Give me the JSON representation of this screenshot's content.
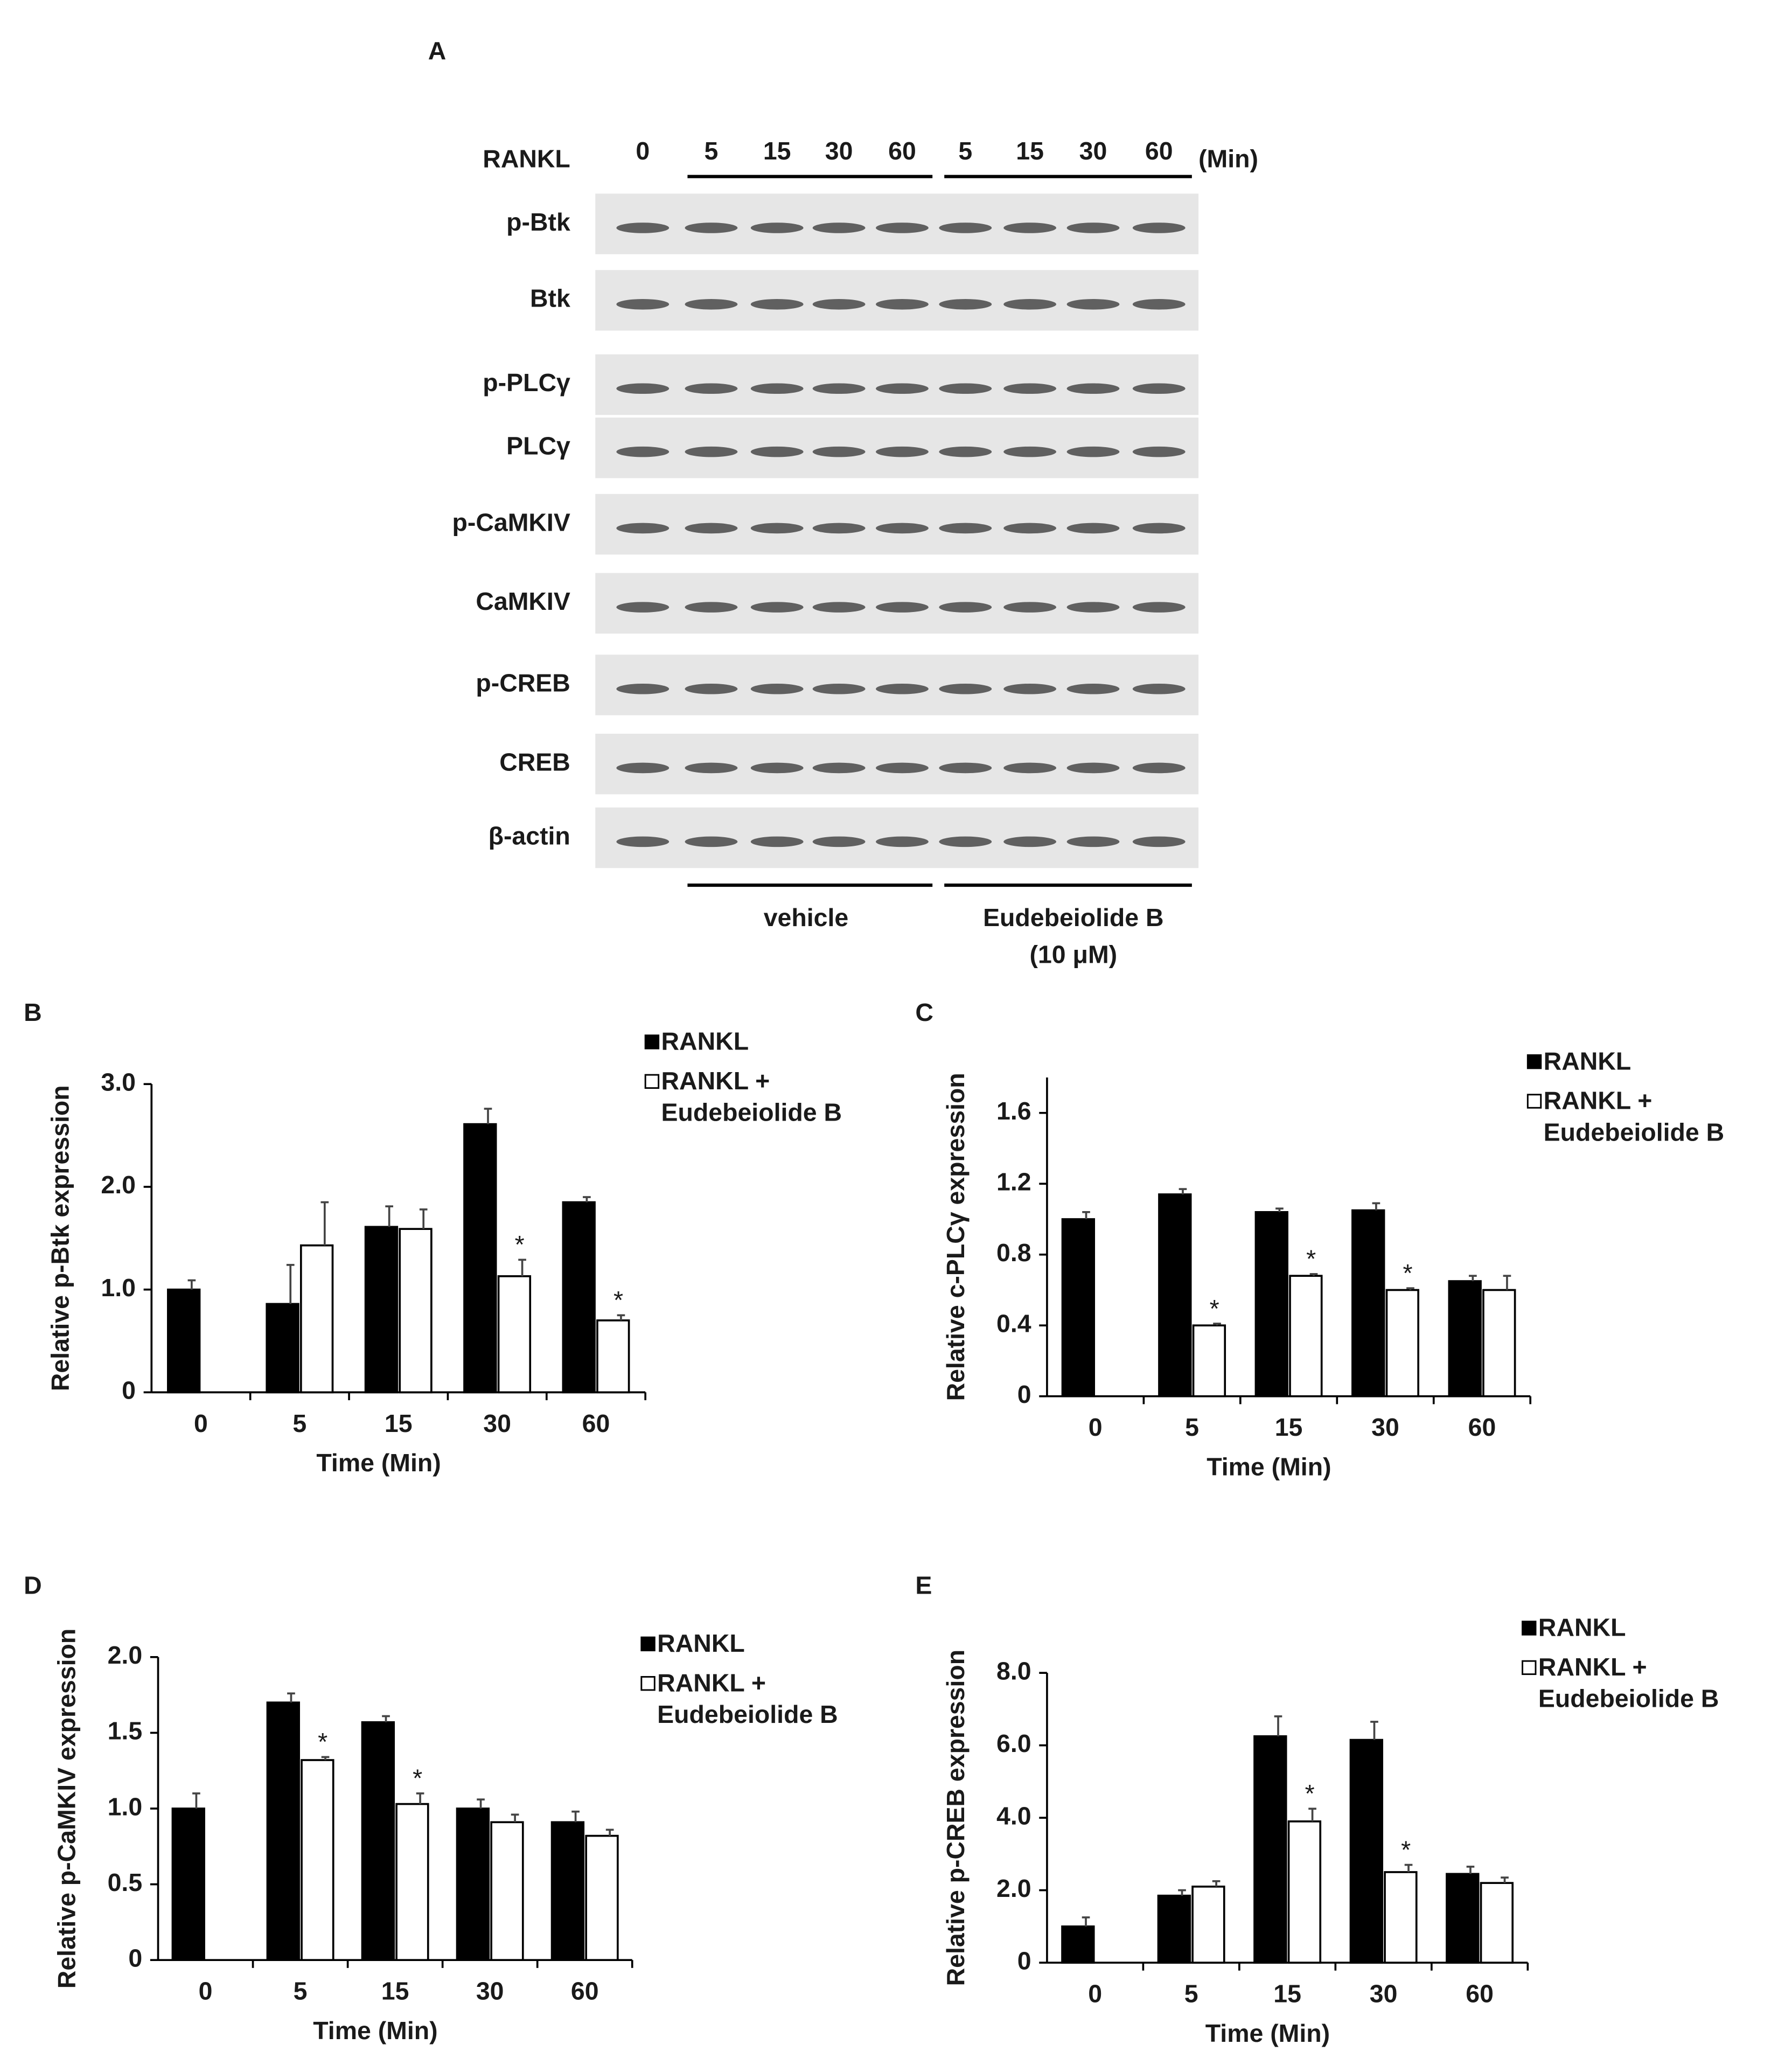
{
  "blot": {
    "panel_label": "A",
    "row_header": "RANKL",
    "lanes": [
      "0",
      "5",
      "15",
      "30",
      "60",
      "5",
      "15",
      "30",
      "60"
    ],
    "unit": "(Min)",
    "rows": [
      "p-Btk",
      "Btk",
      "p-PLCγ",
      "PLCγ",
      "p-CaMKIV",
      "CaMKIV",
      "p-CREB",
      "CREB",
      "β-actin"
    ],
    "groups": [
      [
        "vehicle"
      ],
      [
        "Eudebeiolide B",
        "(10 μM)"
      ]
    ]
  },
  "chart_data": [
    {
      "type": "bar",
      "panel_label": "B",
      "ylabel": "Relative p-Btk expression",
      "xlabel": "Time (Min)",
      "categories": [
        "0",
        "5",
        "15",
        "30",
        "60"
      ],
      "ylim": [
        0,
        3
      ],
      "yticks": [
        0,
        {
          "value": 1,
          "label": "1.0"
        },
        {
          "value": 2,
          "label": "2.0"
        },
        {
          "value": 3,
          "label": "3.0"
        }
      ],
      "series": [
        {
          "name": "RANKL",
          "color": "#000000",
          "values": [
            1.0,
            0.86,
            1.61,
            2.61,
            1.85
          ],
          "errors": [
            0.09,
            0.38,
            0.2,
            0.15,
            0.05
          ]
        },
        {
          "name": "RANKL + Eudebeiolide B",
          "color": "#ffffff",
          "values": [
            null,
            1.43,
            1.59,
            1.13,
            0.7
          ],
          "errors": [
            null,
            0.42,
            0.19,
            0.16,
            0.05
          ],
          "markers": [
            null,
            null,
            null,
            "*",
            "*"
          ]
        }
      ]
    },
    {
      "type": "bar",
      "panel_label": "C",
      "ylabel": "Relative c-PLCγ expression",
      "xlabel": "Time (Min)",
      "categories": [
        "0",
        "5",
        "15",
        "30",
        "60"
      ],
      "ylim": [
        0,
        1.8
      ],
      "yticks": [
        0,
        0.4,
        0.8,
        1.2,
        1.6
      ],
      "series": [
        {
          "name": "RANKL",
          "color": "#000000",
          "values": [
            1.0,
            1.14,
            1.04,
            1.05,
            0.65
          ],
          "errors": [
            0.04,
            0.03,
            0.02,
            0.04,
            0.03
          ]
        },
        {
          "name": "RANKL + Eudebeiolide B",
          "color": "#ffffff",
          "values": [
            null,
            0.4,
            0.68,
            0.6,
            0.6
          ],
          "errors": [
            null,
            0.01,
            0.01,
            0.01,
            0.08
          ],
          "markers": [
            null,
            "*",
            "*",
            "*",
            null
          ]
        }
      ]
    },
    {
      "type": "bar",
      "panel_label": "D",
      "ylabel": "Relative p-CaMKIV expression",
      "xlabel": "Time (Min)",
      "categories": [
        "0",
        "5",
        "15",
        "30",
        "60"
      ],
      "ylim": [
        0,
        2
      ],
      "yticks": [
        0,
        0.5,
        {
          "value": 1,
          "label": "1.0"
        },
        1.5,
        {
          "value": 2,
          "label": "2.0"
        }
      ],
      "series": [
        {
          "name": "RANKL",
          "color": "#000000",
          "values": [
            1.0,
            1.7,
            1.57,
            1.0,
            0.91
          ],
          "errors": [
            0.1,
            0.06,
            0.04,
            0.06,
            0.07
          ]
        },
        {
          "name": "RANKL + Eudebeiolide B",
          "color": "#ffffff",
          "values": [
            null,
            1.32,
            1.03,
            0.91,
            0.82
          ],
          "errors": [
            null,
            0.02,
            0.07,
            0.05,
            0.04
          ],
          "markers": [
            null,
            "*",
            "*",
            null,
            null
          ]
        }
      ]
    },
    {
      "type": "bar",
      "panel_label": "E",
      "ylabel": "Relative p-CREB expression",
      "xlabel": "Time (Min)",
      "categories": [
        "0",
        "5",
        "15",
        "30",
        "60"
      ],
      "ylim": [
        0,
        8
      ],
      "yticks": [
        0,
        {
          "value": 2,
          "label": "2.0"
        },
        {
          "value": 4,
          "label": "4.0"
        },
        {
          "value": 6,
          "label": "6.0"
        },
        {
          "value": 8,
          "label": "8.0"
        }
      ],
      "series": [
        {
          "name": "RANKL",
          "color": "#000000",
          "values": [
            1.0,
            1.85,
            6.25,
            6.15,
            2.45
          ],
          "errors": [
            0.25,
            0.15,
            0.55,
            0.5,
            0.2
          ]
        },
        {
          "name": "RANKL + Eudebeiolide B",
          "color": "#ffffff",
          "values": [
            null,
            2.1,
            3.9,
            2.5,
            2.2
          ],
          "errors": [
            null,
            0.15,
            0.35,
            0.2,
            0.15
          ],
          "markers": [
            null,
            null,
            "*",
            "*",
            null
          ]
        }
      ]
    }
  ]
}
